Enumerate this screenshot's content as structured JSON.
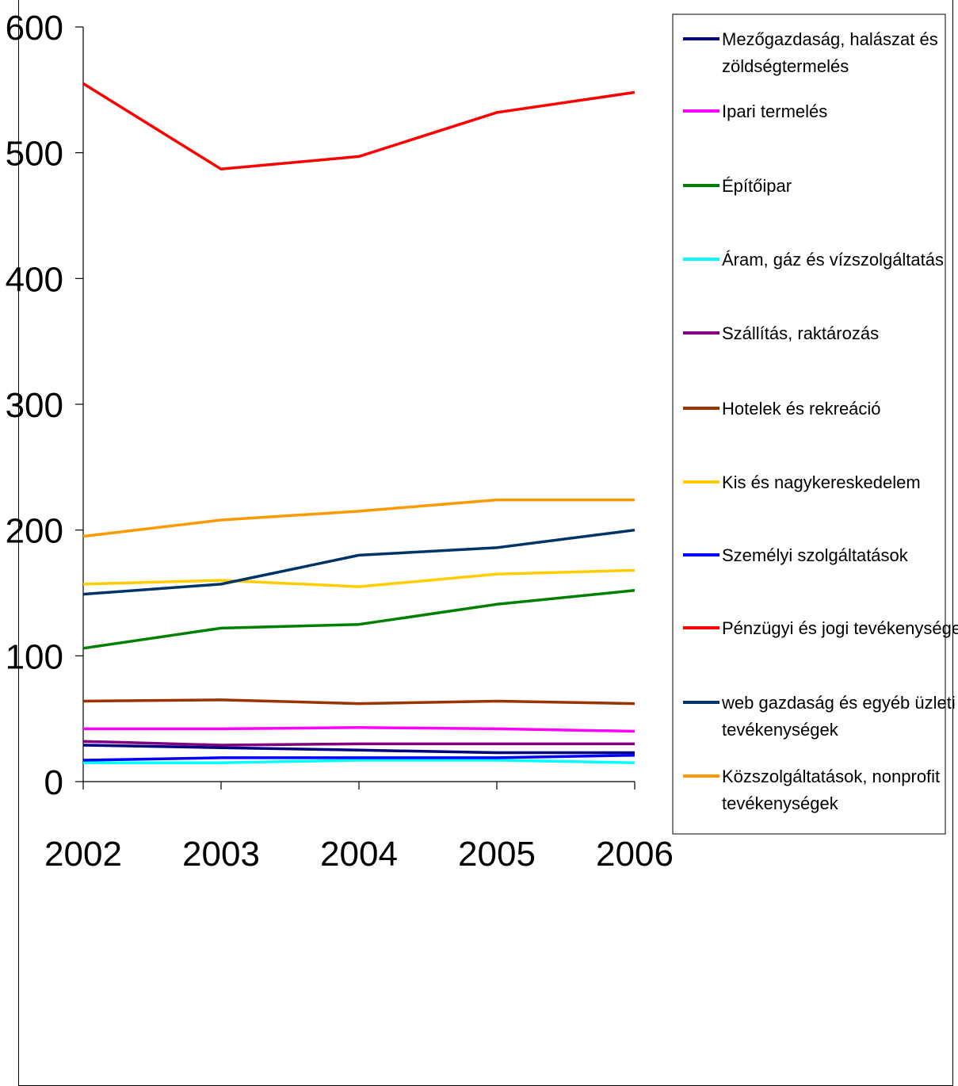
{
  "chart_data": {
    "type": "line",
    "title": "",
    "xlabel": "",
    "ylabel": "",
    "x": [
      "2002",
      "2003",
      "2004",
      "2005",
      "2006"
    ],
    "ylim": [
      0,
      600
    ],
    "yticks": [
      0,
      100,
      200,
      300,
      400,
      500,
      600
    ],
    "ytick_labels": [
      "0",
      "100",
      "200",
      "300",
      "400",
      "500",
      "600"
    ],
    "grid": false,
    "legend_position": "right",
    "series": [
      {
        "name": "Mezőgazdaság, halászat és zöldségtermelés",
        "color": "#000080",
        "values": [
          29,
          27,
          25,
          23,
          23
        ]
      },
      {
        "name": "Ipari termelés",
        "color": "#FF00FF",
        "values": [
          42,
          42,
          43,
          42,
          40
        ]
      },
      {
        "name": "Építőipar",
        "color": "#008000",
        "values": [
          106,
          122,
          125,
          141,
          152
        ]
      },
      {
        "name": "Áram, gáz és vízszolgáltatás",
        "color": "#00FFFF",
        "values": [
          15,
          15,
          17,
          17,
          15
        ]
      },
      {
        "name": "Szállítás, raktározás",
        "color": "#800080",
        "values": [
          32,
          29,
          30,
          30,
          30
        ]
      },
      {
        "name": "Hotelek és rekreáció",
        "color": "#993300",
        "values": [
          64,
          65,
          62,
          64,
          62
        ]
      },
      {
        "name": "Kis és nagykereskedelem",
        "color": "#FFCC00",
        "values": [
          157,
          160,
          155,
          165,
          168
        ]
      },
      {
        "name": "Személyi szolgáltatások",
        "color": "#0000FF",
        "values": [
          17,
          19,
          19,
          19,
          21
        ]
      },
      {
        "name": "Pénzügyi és jogi tevékenységek",
        "color": "#FF0000",
        "values": [
          555,
          487,
          497,
          532,
          548
        ]
      },
      {
        "name": "web gazdaság és egyéb üzleti tevékenységek",
        "color": "#003366",
        "values": [
          149,
          157,
          180,
          186,
          200
        ]
      },
      {
        "name": "Közszolgáltatások, nonprofit tevékenységek",
        "color": "#FF9900",
        "values": [
          195,
          208,
          215,
          224,
          224
        ]
      }
    ],
    "legend_lines": [
      [
        "Mezőgazdaság, halászat és",
        "zöldségtermelés"
      ],
      [
        "Ipari termelés"
      ],
      [
        "Építőipar"
      ],
      [
        "Áram, gáz és vízszolgáltatás"
      ],
      [
        "Szállítás, raktározás"
      ],
      [
        "Hotelek és rekreáció"
      ],
      [
        "Kis és nagykereskedelem"
      ],
      [
        "Személyi szolgáltatások"
      ],
      [
        "Pénzügyi és jogi tevékenységek"
      ],
      [
        "web gazdaság és egyéb üzleti",
        "tevékenységek"
      ],
      [
        "Közszolgáltatások, nonprofit",
        "tevékenységek"
      ]
    ]
  }
}
